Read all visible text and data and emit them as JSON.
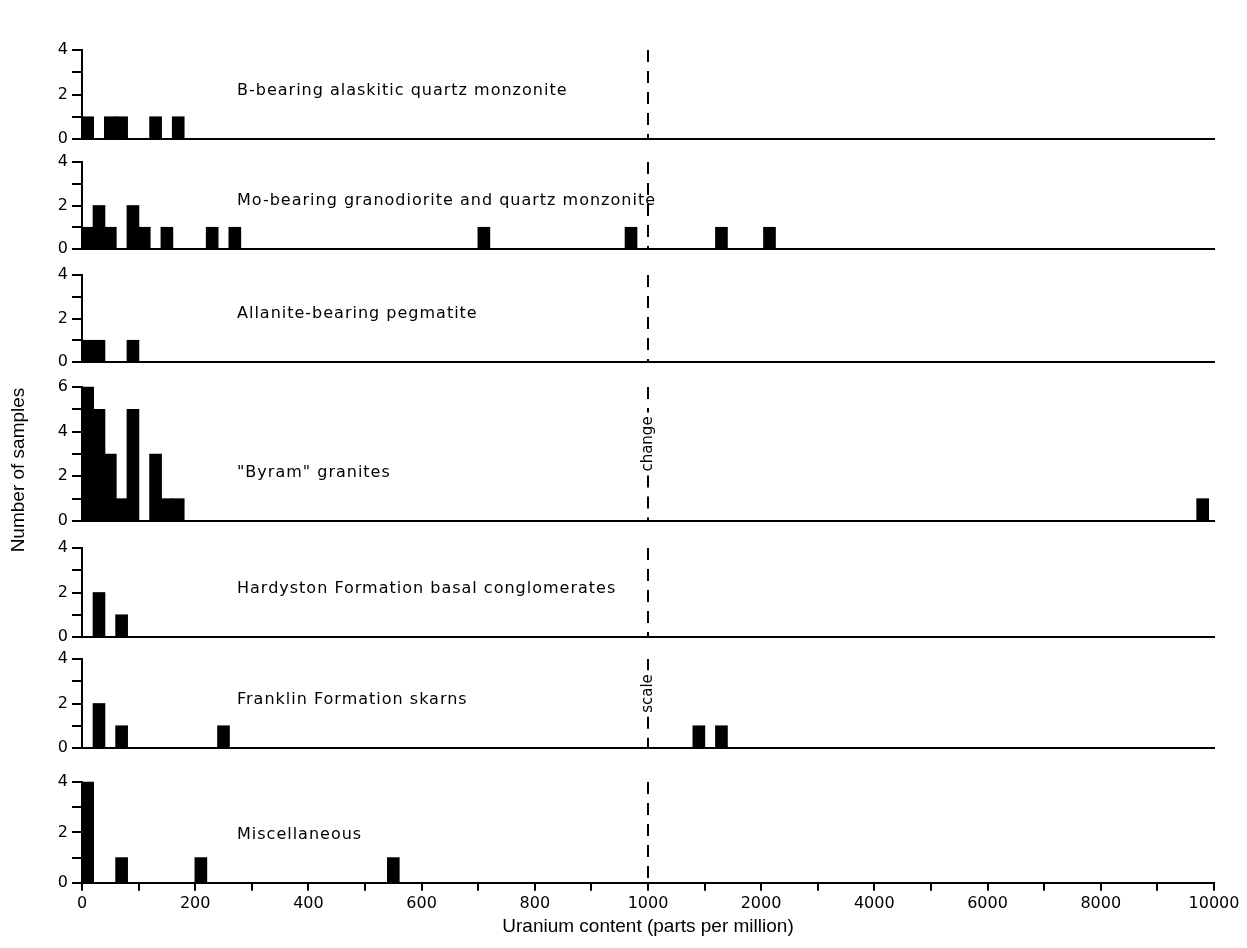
{
  "chart_data": [
    {
      "type": "bar",
      "title": "B-bearing alaskitic quartz monzonite",
      "x": [
        10,
        50,
        70,
        130,
        170
      ],
      "values": [
        1,
        1,
        1,
        1,
        1
      ],
      "color": "#000000",
      "xlim": [
        0,
        1000
      ],
      "ylim": [
        0,
        4
      ],
      "yticks": [
        0,
        {
          "value": 1,
          "label": null
        },
        2,
        {
          "value": 3,
          "label": null
        },
        4
      ],
      "tick_labels": "y",
      "ref_lines": [
        {
          "axis": "x",
          "value": 1000,
          "color": "#000000",
          "line_style": "dashed"
        }
      ]
    },
    {
      "type": "bar",
      "color": "#000000",
      "xlim": [
        1000,
        2000
      ],
      "ylim": [
        0,
        4
      ],
      "tick_labels": false
    },
    {
      "type": "bar",
      "color": "#000000",
      "xlim": [
        2000,
        10000
      ],
      "ylim": [
        0,
        4
      ],
      "tick_labels": false
    },
    {
      "type": "bar",
      "title": "Mo-bearing granodiorite and quartz monzonite",
      "x": [
        10,
        30,
        50,
        90,
        110,
        150,
        230,
        270,
        710,
        970
      ],
      "values": [
        1,
        2,
        1,
        2,
        1,
        1,
        1,
        1,
        1,
        1
      ],
      "color": "#000000",
      "xlim": [
        0,
        1000
      ],
      "ylim": [
        0,
        4
      ],
      "yticks": [
        0,
        {
          "value": 1,
          "label": null
        },
        2,
        {
          "value": 3,
          "label": null
        },
        4
      ],
      "tick_labels": "y",
      "ref_lines": [
        {
          "axis": "x",
          "value": 1000,
          "color": "#000000",
          "line_style": "dashed"
        }
      ]
    },
    {
      "type": "bar",
      "x": [
        1650
      ],
      "values": [
        1
      ],
      "color": "#000000",
      "xlim": [
        1000,
        2000
      ],
      "ylim": [
        0,
        4
      ],
      "tick_labels": false
    },
    {
      "type": "bar",
      "x": [
        2150
      ],
      "values": [
        1
      ],
      "color": "#000000",
      "xlim": [
        2000,
        10000
      ],
      "ylim": [
        0,
        4
      ],
      "tick_labels": false
    },
    {
      "type": "bar",
      "title": "Allanite-bearing pegmatite",
      "x": [
        10,
        30,
        90
      ],
      "values": [
        1,
        1,
        1
      ],
      "color": "#000000",
      "xlim": [
        0,
        1000
      ],
      "ylim": [
        0,
        4
      ],
      "yticks": [
        0,
        {
          "value": 1,
          "label": null
        },
        2,
        {
          "value": 3,
          "label": null
        },
        4
      ],
      "tick_labels": "y",
      "ref_lines": [
        {
          "axis": "x",
          "value": 1000,
          "color": "#000000",
          "line_style": "dashed"
        }
      ]
    },
    {
      "type": "bar",
      "color": "#000000",
      "xlim": [
        1000,
        2000
      ],
      "ylim": [
        0,
        4
      ],
      "tick_labels": false
    },
    {
      "type": "bar",
      "color": "#000000",
      "xlim": [
        2000,
        10000
      ],
      "ylim": [
        0,
        4
      ],
      "tick_labels": false
    },
    {
      "type": "bar",
      "title": "\"Byram\" granites",
      "ylabel": "Number of samples",
      "x": [
        10,
        30,
        50,
        70,
        90,
        130,
        150,
        170
      ],
      "values": [
        6,
        5,
        3,
        1,
        5,
        3,
        1,
        1
      ],
      "color": "#000000",
      "xlim": [
        0,
        1000
      ],
      "ylim": [
        0,
        6
      ],
      "yticks": [
        0,
        {
          "value": 1,
          "label": null
        },
        2,
        {
          "value": 3,
          "label": null
        },
        4,
        {
          "value": 5,
          "label": null
        },
        6
      ],
      "tick_labels": "y",
      "ref_lines": [
        {
          "axis": "x",
          "value": 1000,
          "label": "change",
          "color": "#000000",
          "line_style": "dashed"
        }
      ]
    },
    {
      "type": "bar",
      "color": "#000000",
      "xlim": [
        1000,
        2000
      ],
      "ylim": [
        0,
        6
      ],
      "tick_labels": false
    },
    {
      "type": "bar",
      "x": [
        9800
      ],
      "values": [
        1
      ],
      "color": "#000000",
      "xlim": [
        2000,
        10000
      ],
      "ylim": [
        0,
        6
      ],
      "tick_labels": false
    },
    {
      "type": "bar",
      "title": "Hardyston Formation basal conglomerates",
      "x": [
        30,
        70
      ],
      "values": [
        2,
        1
      ],
      "color": "#000000",
      "xlim": [
        0,
        1000
      ],
      "ylim": [
        0,
        4
      ],
      "yticks": [
        0,
        {
          "value": 1,
          "label": null
        },
        2,
        {
          "value": 3,
          "label": null
        },
        4
      ],
      "tick_labels": "y",
      "ref_lines": [
        {
          "axis": "x",
          "value": 1000,
          "color": "#000000",
          "line_style": "dashed"
        }
      ]
    },
    {
      "type": "bar",
      "color": "#000000",
      "xlim": [
        1000,
        2000
      ],
      "ylim": [
        0,
        4
      ],
      "tick_labels": false
    },
    {
      "type": "bar",
      "color": "#000000",
      "xlim": [
        2000,
        10000
      ],
      "ylim": [
        0,
        4
      ],
      "tick_labels": false
    },
    {
      "type": "bar",
      "title": "Franklin Formation skarns",
      "x": [
        30,
        70,
        250
      ],
      "values": [
        2,
        1,
        1
      ],
      "color": "#000000",
      "xlim": [
        0,
        1000
      ],
      "ylim": [
        0,
        4
      ],
      "yticks": [
        0,
        {
          "value": 1,
          "label": null
        },
        2,
        {
          "value": 3,
          "label": null
        },
        4
      ],
      "tick_labels": "y",
      "ref_lines": [
        {
          "axis": "x",
          "value": 1000,
          "label": "scale",
          "color": "#000000",
          "line_style": "dashed"
        }
      ]
    },
    {
      "type": "bar",
      "x": [
        1450,
        1650
      ],
      "values": [
        1,
        1
      ],
      "color": "#000000",
      "xlim": [
        1000,
        2000
      ],
      "ylim": [
        0,
        4
      ],
      "tick_labels": false
    },
    {
      "type": "bar",
      "color": "#000000",
      "xlim": [
        2000,
        10000
      ],
      "ylim": [
        0,
        4
      ],
      "tick_labels": false
    },
    {
      "type": "bar",
      "title": "Miscellaneous",
      "xlabel": "Uranium content (parts per million)",
      "x": [
        10,
        70,
        210,
        550
      ],
      "values": [
        4,
        1,
        1,
        1
      ],
      "color": "#000000",
      "xlim": [
        0,
        1000
      ],
      "xticks": [
        0,
        {
          "value": 100,
          "label": null
        },
        200,
        {
          "value": 300,
          "label": null
        },
        400,
        {
          "value": 500,
          "label": null
        },
        600,
        {
          "value": 700,
          "label": null
        },
        800,
        {
          "value": 900,
          "label": null
        }
      ],
      "ylim": [
        0,
        4
      ],
      "yticks": [
        0,
        {
          "value": 1,
          "label": null
        },
        2,
        {
          "value": 3,
          "label": null
        },
        4
      ],
      "ref_lines": [
        {
          "axis": "x",
          "value": 1000,
          "color": "#000000",
          "line_style": "dashed"
        }
      ]
    },
    {
      "type": "bar",
      "color": "#000000",
      "xlim": [
        1000,
        2000
      ],
      "xticks": [
        1000,
        {
          "value": 1500,
          "label": null
        },
        2000
      ],
      "ylim": [
        0,
        4
      ],
      "tick_labels": "x"
    },
    {
      "type": "bar",
      "color": "#000000",
      "xlim": [
        2000,
        10000
      ],
      "xticks": [
        {
          "value": 3000,
          "label": null
        },
        4000,
        {
          "value": 5000,
          "label": null
        },
        6000,
        {
          "value": 7000,
          "label": null
        },
        8000,
        {
          "value": 9000,
          "label": null
        },
        10000
      ],
      "ylim": [
        0,
        4
      ],
      "tick_labels": "x"
    }
  ]
}
